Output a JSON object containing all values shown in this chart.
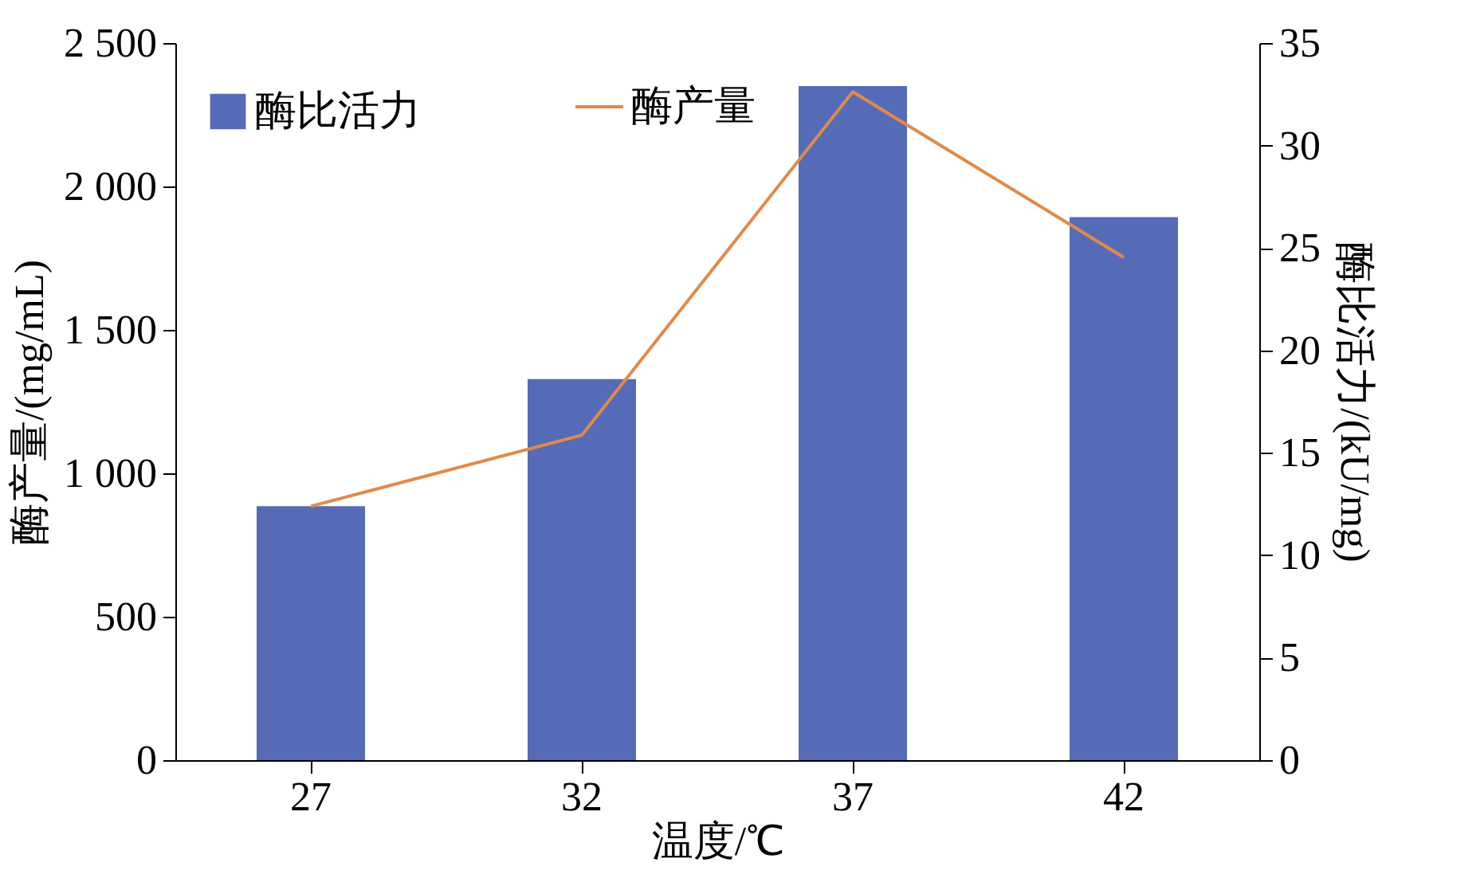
{
  "chart_data": {
    "type": "bar",
    "xlabel": "温度/℃",
    "ylabel": "酶产量/(mg/mL)",
    "y2label": "酶比活力/(kU/mg)",
    "categories": [
      "27",
      "32",
      "37",
      "42"
    ],
    "series": [
      {
        "name": "酶比活力",
        "axis": "y2",
        "color": "#566bb8",
        "values": [
          12.4,
          18.6,
          32.9,
          26.5
        ]
      },
      {
        "name": "酶产量",
        "type": "line",
        "axis": "y",
        "color": "#e08a4a",
        "values": [
          885,
          1133,
          2330,
          1753
        ]
      }
    ],
    "ylim": [
      0,
      2500
    ],
    "yticks": [
      0,
      500,
      {
        "value": 1000,
        "label": "1 000"
      },
      {
        "value": 1500,
        "label": "1 500"
      },
      {
        "value": 2000,
        "label": "2 000"
      },
      {
        "value": 2500,
        "label": "2 500"
      }
    ],
    "y2lim": [
      0,
      35
    ],
    "y2ticks": [
      0,
      5,
      10,
      15,
      20,
      25,
      30,
      35
    ],
    "grid": false,
    "legend": "top left",
    "marker": "none",
    "line_style": "solid"
  }
}
